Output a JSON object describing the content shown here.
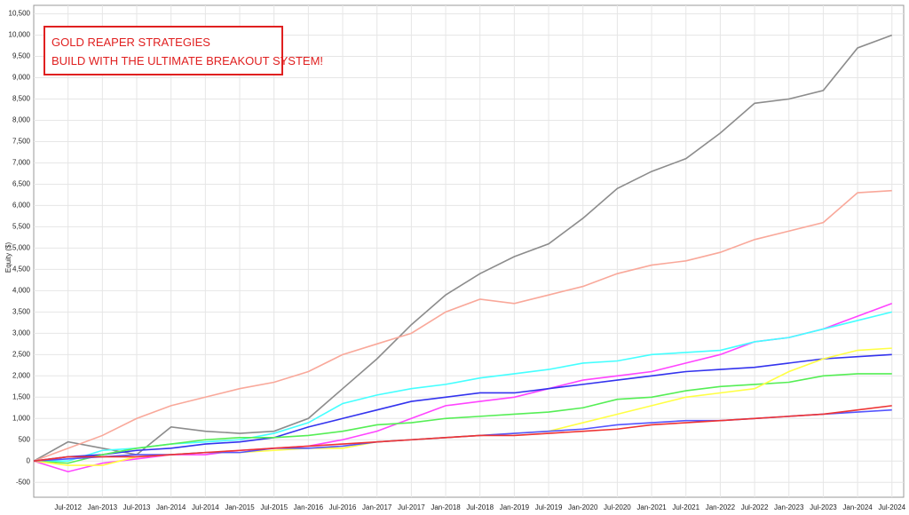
{
  "chart_data": {
    "type": "line",
    "y_label": "Equity ($)",
    "annotations": [
      "GOLD REAPER STRATEGIES",
      "BUILD WITH THE ULTIMATE BREAKOUT SYSTEM!"
    ],
    "categories": [
      null,
      "Jul-2012",
      "Jan-2013",
      "Jul-2013",
      "Jan-2014",
      "Jul-2014",
      "Jan-2015",
      "Jul-2015",
      "Jan-2016",
      "Jul-2016",
      "Jan-2017",
      "Jul-2017",
      "Jan-2018",
      "Jul-2018",
      "Jan-2019",
      "Jul-2019",
      "Jan-2020",
      "Jul-2020",
      "Jan-2021",
      "Jul-2021",
      "Jan-2022",
      "Jul-2022",
      "Jan-2023",
      "Jul-2023",
      "Jan-2024",
      "Jul-2024"
    ],
    "series": [
      {
        "color": "#8c8c8c",
        "values": [
          0,
          450,
          300,
          150,
          800,
          700,
          650,
          700,
          1000,
          1700,
          2400,
          3200,
          3900,
          4400,
          4800,
          5100,
          5700,
          6400,
          6800,
          7100,
          7700,
          8400,
          8500,
          8700,
          9700,
          10000
        ]
      },
      {
        "color": "#f9a89a",
        "values": [
          0,
          300,
          600,
          1000,
          1300,
          1500,
          1700,
          1850,
          2100,
          2500,
          2750,
          3000,
          3500,
          3800,
          3700,
          3900,
          4100,
          4400,
          4600,
          4700,
          4900,
          5200,
          5400,
          5600,
          6300,
          6350
        ]
      },
      {
        "color": "#ff44ff",
        "values": [
          0,
          -250,
          -50,
          50,
          150,
          150,
          250,
          300,
          350,
          500,
          700,
          1000,
          1300,
          1400,
          1500,
          1700,
          1900,
          2000,
          2100,
          2300,
          2500,
          2800,
          2900,
          3100,
          3400,
          3700
        ]
      },
      {
        "color": "#44ffff",
        "values": [
          0,
          0,
          250,
          300,
          400,
          450,
          500,
          650,
          900,
          1350,
          1550,
          1700,
          1800,
          1950,
          2050,
          2150,
          2300,
          2350,
          2500,
          2550,
          2600,
          2800,
          2900,
          3100,
          3300,
          3500
        ]
      },
      {
        "color": "#3333ee",
        "values": [
          0,
          100,
          150,
          250,
          300,
          400,
          450,
          550,
          800,
          1000,
          1200,
          1400,
          1500,
          1600,
          1600,
          1700,
          1800,
          1900,
          2000,
          2100,
          2150,
          2200,
          2300,
          2400,
          2450,
          2500
        ]
      },
      {
        "color": "#55ee55",
        "values": [
          0,
          -50,
          150,
          300,
          400,
          500,
          550,
          550,
          600,
          700,
          850,
          900,
          1000,
          1050,
          1100,
          1150,
          1250,
          1450,
          1500,
          1650,
          1750,
          1800,
          1850,
          2000,
          2050,
          2050
        ]
      },
      {
        "color": "#ffff44",
        "values": [
          0,
          -100,
          -100,
          100,
          150,
          200,
          200,
          250,
          300,
          300,
          450,
          500,
          550,
          600,
          650,
          700,
          900,
          1100,
          1300,
          1500,
          1600,
          1700,
          2100,
          2400,
          2600,
          2650
        ]
      },
      {
        "color": "#5555ff",
        "values": [
          0,
          50,
          100,
          150,
          150,
          200,
          200,
          300,
          300,
          350,
          450,
          500,
          550,
          600,
          650,
          700,
          750,
          850,
          900,
          950,
          950,
          1000,
          1050,
          1100,
          1150,
          1200
        ]
      },
      {
        "color": "#ee3333",
        "values": [
          0,
          100,
          100,
          100,
          150,
          200,
          250,
          300,
          350,
          400,
          450,
          500,
          550,
          600,
          600,
          650,
          700,
          750,
          850,
          900,
          950,
          1000,
          1050,
          1100,
          1200,
          1300
        ]
      }
    ],
    "ylim": [
      -850,
      10700
    ],
    "yticks": [
      -500,
      0,
      500,
      {
        "value": 1000,
        "label": "1,000"
      },
      {
        "value": 1500,
        "label": "1,500"
      },
      {
        "value": 2000,
        "label": "2,000"
      },
      {
        "value": 2500,
        "label": "2,500"
      },
      {
        "value": 3000,
        "label": "3,000"
      },
      {
        "value": 3500,
        "label": "3,500"
      },
      {
        "value": 4000,
        "label": "4,000"
      },
      {
        "value": 4500,
        "label": "4,500"
      },
      {
        "value": 5000,
        "label": "5,000"
      },
      {
        "value": 5500,
        "label": "5,500"
      },
      {
        "value": 6000,
        "label": "6,000"
      },
      {
        "value": 6500,
        "label": "6,500"
      },
      {
        "value": 7000,
        "label": "7,000"
      },
      {
        "value": 7500,
        "label": "7,500"
      },
      {
        "value": 8000,
        "label": "8,000"
      },
      {
        "value": 8500,
        "label": "8,500"
      },
      {
        "value": 9000,
        "label": "9,000"
      },
      {
        "value": 9500,
        "label": "9,500"
      },
      {
        "value": 10000,
        "label": "10,000"
      },
      {
        "value": 10500,
        "label": "10,500"
      }
    ],
    "grid": true
  }
}
